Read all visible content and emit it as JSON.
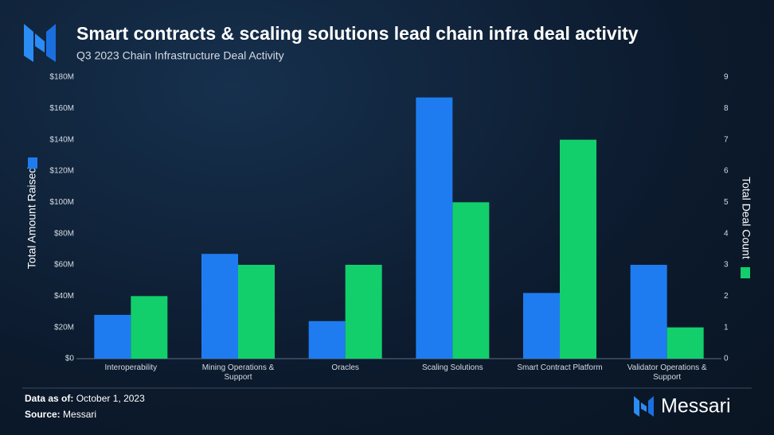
{
  "chart_data": {
    "type": "bar",
    "title": "Smart contracts & scaling solutions lead chain infra deal activity",
    "subtitle": "Q3 2023 Chain Infrastructure Deal Activity",
    "categories": [
      "Interoperability",
      "Mining Operations & Support",
      "Oracles",
      "Scaling Solutions",
      "Smart Contract Platform",
      "Validator Operations & Support"
    ],
    "series": [
      {
        "name": "Total Amount Raised",
        "color": "#1f7cf0",
        "values": [
          28,
          67,
          24,
          167,
          42,
          60
        ]
      },
      {
        "name": "Total Deal Count",
        "color": "#12cf6c",
        "axis": "y2",
        "values": [
          2,
          3,
          3,
          5,
          7,
          1
        ]
      }
    ],
    "ylim": [
      0,
      180
    ],
    "yticks": [
      {
        "value": 0,
        "label": "$0"
      },
      {
        "value": 20,
        "label": "$20M"
      },
      {
        "value": 40,
        "label": "$40M"
      },
      {
        "value": 60,
        "label": "$60M"
      },
      {
        "value": 80,
        "label": "$80M"
      },
      {
        "value": 100,
        "label": "$100M"
      },
      {
        "value": 120,
        "label": "$120M"
      },
      {
        "value": 140,
        "label": "$140M"
      },
      {
        "value": 160,
        "label": "$160M"
      },
      {
        "value": 180,
        "label": "$180M"
      }
    ],
    "y2lim": [
      0,
      9
    ],
    "y2ticks": [
      0,
      1,
      2,
      3,
      4,
      5,
      6,
      7,
      8,
      9
    ],
    "grid": false
  },
  "footer": {
    "date_label": "Data as of:",
    "date": "October 1, 2023",
    "source_label": "Source:",
    "source": "Messari",
    "brand": "Messari"
  }
}
